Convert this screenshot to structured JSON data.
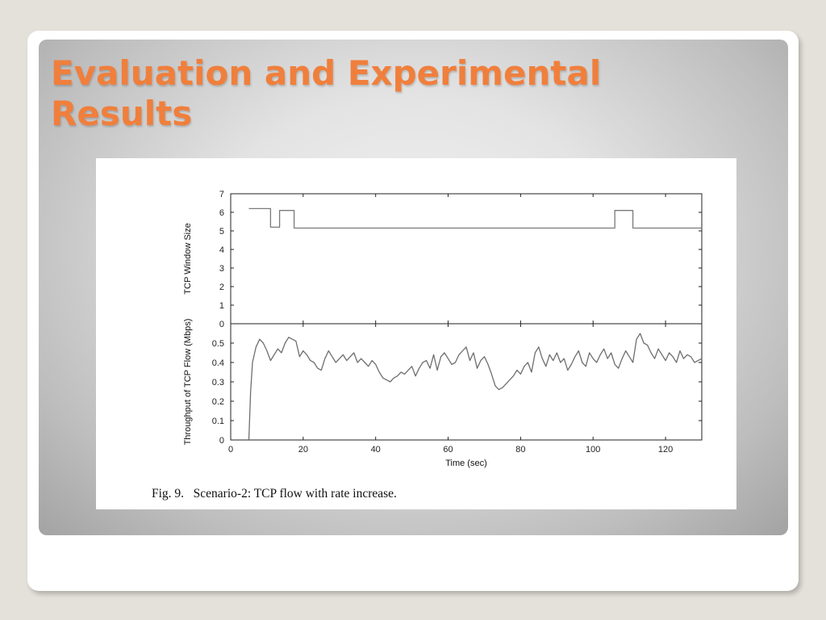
{
  "slide": {
    "title": "Evaluation and Experimental Results",
    "title_color": "#f07f3c"
  },
  "figure": {
    "caption": "Fig. 9.   Scenario-2: TCP flow with rate increase."
  },
  "chart_data": [
    {
      "type": "line",
      "ylabel": "TCP Window Size",
      "xlabel": "",
      "xlim": [
        0,
        130
      ],
      "ylim": [
        0,
        7
      ],
      "xticks": [
        0,
        20,
        40,
        60,
        80,
        100,
        120
      ],
      "yticks": [
        0,
        1,
        2,
        3,
        4,
        5,
        6,
        7
      ],
      "show_x_tick_labels": false,
      "grid": false,
      "series": [
        {
          "color": "#7a7a7a",
          "x": [
            5,
            11,
            11,
            13.5,
            13.5,
            17.5,
            17.5,
            106,
            106,
            111,
            111,
            130
          ],
          "y": [
            6.2,
            6.2,
            5.2,
            5.2,
            6.1,
            6.1,
            5.15,
            5.15,
            6.1,
            6.1,
            5.15,
            5.15
          ]
        }
      ]
    },
    {
      "type": "line",
      "ylabel": "Throughput of TCP Flow (Mbps)",
      "xlabel": "Time (sec)",
      "xlim": [
        0,
        130
      ],
      "ylim": [
        0,
        0.6
      ],
      "xticks": [
        0,
        20,
        40,
        60,
        80,
        100,
        120
      ],
      "yticks": [
        0,
        0.1,
        0.2,
        0.3,
        0.4,
        0.5
      ],
      "grid": false,
      "series": [
        {
          "color": "#6e6e6e",
          "x": [
            5,
            5.5,
            6,
            6.5,
            7,
            8,
            9,
            10,
            11,
            12,
            13,
            14,
            15,
            16,
            17,
            18,
            19,
            20,
            21,
            22,
            23,
            24,
            25,
            26,
            27,
            28,
            29,
            30,
            31,
            32,
            33,
            34,
            35,
            36,
            37,
            38,
            39,
            40,
            41,
            42,
            43,
            44,
            45,
            46,
            47,
            48,
            49,
            50,
            51,
            52,
            53,
            54,
            55,
            56,
            57,
            58,
            59,
            60,
            61,
            62,
            63,
            64,
            65,
            66,
            67,
            68,
            69,
            70,
            71,
            72,
            73,
            74,
            75,
            76,
            77,
            78,
            79,
            80,
            81,
            82,
            83,
            84,
            85,
            86,
            87,
            88,
            89,
            90,
            91,
            92,
            93,
            94,
            95,
            96,
            97,
            98,
            99,
            100,
            101,
            102,
            103,
            104,
            105,
            106,
            107,
            108,
            109,
            110,
            111,
            112,
            113,
            114,
            115,
            116,
            117,
            118,
            119,
            120,
            121,
            122,
            123,
            124,
            125,
            126,
            127,
            128,
            129,
            130
          ],
          "y": [
            0.0,
            0.25,
            0.4,
            0.44,
            0.48,
            0.52,
            0.5,
            0.46,
            0.41,
            0.44,
            0.47,
            0.45,
            0.5,
            0.53,
            0.52,
            0.51,
            0.43,
            0.46,
            0.44,
            0.41,
            0.4,
            0.37,
            0.36,
            0.42,
            0.46,
            0.43,
            0.4,
            0.42,
            0.44,
            0.41,
            0.43,
            0.45,
            0.4,
            0.42,
            0.4,
            0.38,
            0.41,
            0.39,
            0.35,
            0.32,
            0.31,
            0.3,
            0.32,
            0.33,
            0.35,
            0.34,
            0.36,
            0.38,
            0.33,
            0.37,
            0.4,
            0.41,
            0.37,
            0.44,
            0.36,
            0.43,
            0.45,
            0.42,
            0.39,
            0.4,
            0.44,
            0.46,
            0.48,
            0.41,
            0.45,
            0.37,
            0.41,
            0.43,
            0.39,
            0.34,
            0.28,
            0.26,
            0.27,
            0.29,
            0.31,
            0.33,
            0.36,
            0.34,
            0.38,
            0.4,
            0.35,
            0.45,
            0.48,
            0.42,
            0.38,
            0.44,
            0.41,
            0.45,
            0.4,
            0.42,
            0.36,
            0.39,
            0.43,
            0.46,
            0.4,
            0.38,
            0.45,
            0.42,
            0.4,
            0.44,
            0.47,
            0.42,
            0.45,
            0.39,
            0.37,
            0.42,
            0.46,
            0.43,
            0.4,
            0.52,
            0.55,
            0.5,
            0.49,
            0.45,
            0.42,
            0.47,
            0.44,
            0.41,
            0.45,
            0.43,
            0.4,
            0.46,
            0.42,
            0.44,
            0.43,
            0.4,
            0.41,
            0.42
          ]
        }
      ]
    }
  ]
}
